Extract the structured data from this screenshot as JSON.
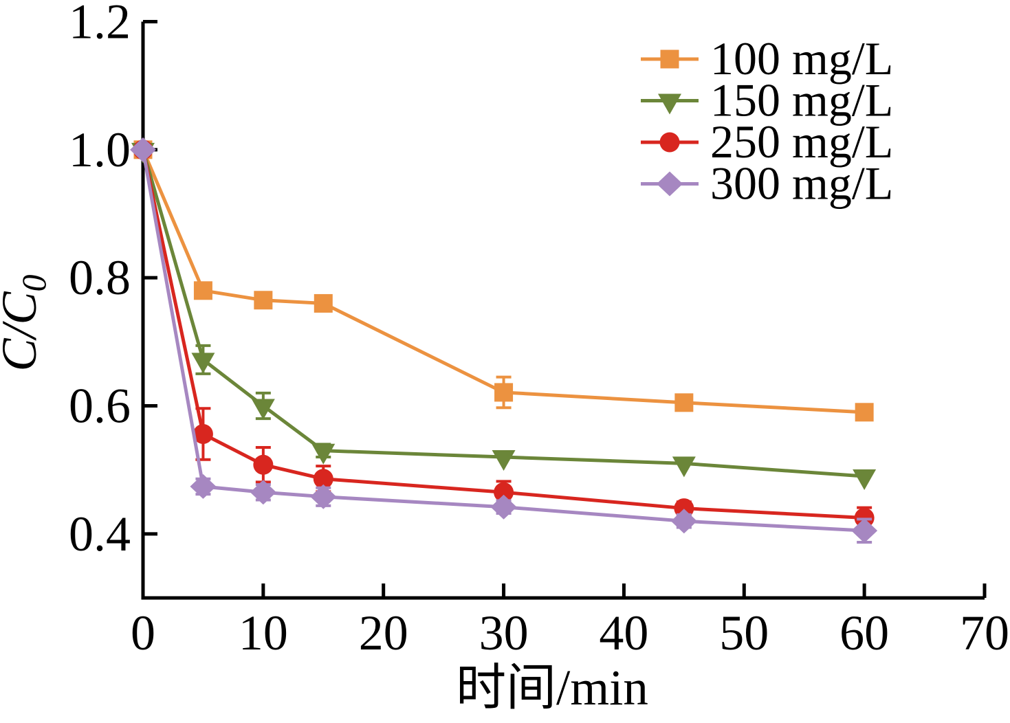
{
  "chart_data": {
    "type": "line",
    "title": "",
    "xlabel": "时间/min",
    "ylabel": "C/C0",
    "ylabel_main": "C/C",
    "ylabel_sub": "0",
    "xlim": [
      0,
      70
    ],
    "ylim": [
      0.3,
      1.2
    ],
    "xticks": [
      0,
      10,
      20,
      30,
      40,
      50,
      60,
      70
    ],
    "yticks": [
      0.4,
      0.6,
      0.8,
      1.0,
      1.2
    ],
    "grid": false,
    "legend_position": "top-right",
    "x": [
      0,
      5,
      10,
      15,
      30,
      45,
      60
    ],
    "series": [
      {
        "name": "100 mg/L",
        "color": "#EC9240",
        "marker": "square",
        "values": [
          1.0,
          0.78,
          0.765,
          0.76,
          0.621,
          0.605,
          0.59
        ],
        "errors": [
          0,
          0.008,
          0.008,
          0.008,
          0.024,
          0.008,
          0.008
        ]
      },
      {
        "name": "150 mg/L",
        "color": "#6B8639",
        "marker": "triangle-down",
        "values": [
          1.0,
          0.672,
          0.6,
          0.53,
          0.52,
          0.51,
          0.49
        ],
        "errors": [
          0,
          0.022,
          0.02,
          0.01,
          0,
          0,
          0
        ]
      },
      {
        "name": "250 mg/L",
        "color": "#D8261F",
        "marker": "circle",
        "values": [
          1.0,
          0.556,
          0.508,
          0.486,
          0.465,
          0.44,
          0.425
        ],
        "errors": [
          0,
          0.04,
          0.027,
          0.02,
          0.017,
          0.01,
          0.016
        ]
      },
      {
        "name": "300 mg/L",
        "color": "#A687C1",
        "marker": "diamond",
        "values": [
          1.0,
          0.474,
          0.465,
          0.458,
          0.442,
          0.42,
          0.405
        ],
        "errors": [
          0,
          0.012,
          0.012,
          0.014,
          0.01,
          0.01,
          0.018
        ]
      }
    ],
    "axis_color": "#000000",
    "text_color": "#000000"
  }
}
